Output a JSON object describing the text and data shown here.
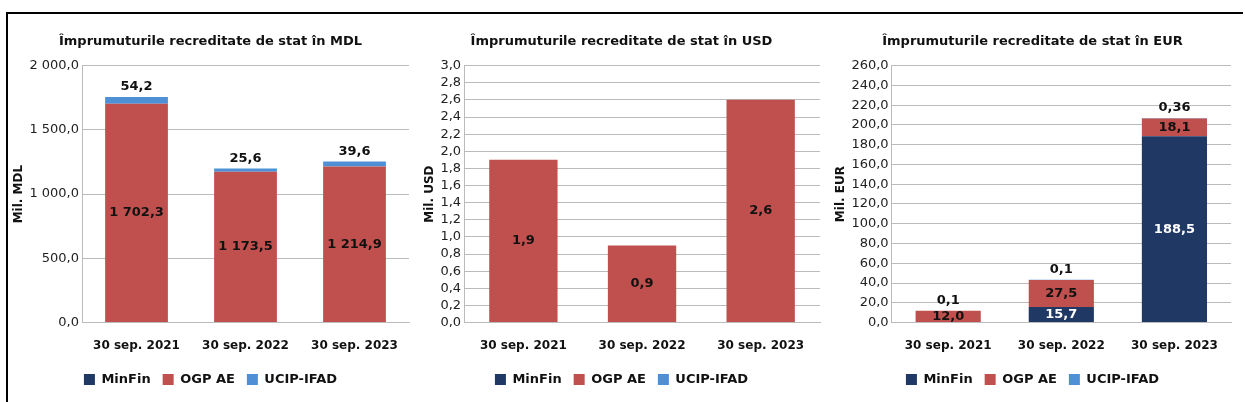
{
  "chart_data": [
    {
      "type": "bar",
      "title": "Împrumuturile recreditate de stat în MDL",
      "ylabel": "Mil. MDL",
      "categories": [
        "30 sep. 2021",
        "30 sep. 2022",
        "30 sep. 2023"
      ],
      "stacked": true,
      "ylim": [
        0,
        2000
      ],
      "yticks": [
        {
          "value": 0,
          "label": "0,0"
        },
        {
          "value": 500,
          "label": "500,0"
        },
        {
          "value": 1000,
          "label": "1 000,0"
        },
        {
          "value": 1500,
          "label": "1 500,0"
        },
        {
          "value": 2000,
          "label": "2 000,0"
        }
      ],
      "grid": "y",
      "legend": "bottom",
      "series": [
        {
          "name": "MinFin",
          "color": "#1f3864",
          "values": [
            null,
            null,
            null
          ]
        },
        {
          "name": "OGP AE",
          "color": "#c0504d",
          "values": [
            1702.3,
            1173.5,
            1214.9
          ],
          "value_labels": [
            "1 702,3",
            "1 173,5",
            "1 214,9"
          ]
        },
        {
          "name": "UCIP-IFAD",
          "color": "#4f8fd6",
          "values": [
            54.2,
            25.6,
            39.6
          ],
          "value_labels": [
            "54,2",
            "25,6",
            "39,6"
          ]
        }
      ]
    },
    {
      "type": "bar",
      "title": "Împrumuturile recreditate de stat în USD",
      "ylabel": "Mil. USD",
      "categories": [
        "30 sep. 2021",
        "30 sep. 2022",
        "30 sep. 2023"
      ],
      "stacked": true,
      "ylim": [
        0,
        3
      ],
      "yticks": [
        {
          "value": 0,
          "label": "0,0"
        },
        {
          "value": 0.2,
          "label": "0,2"
        },
        {
          "value": 0.4,
          "label": "0,4"
        },
        {
          "value": 0.6,
          "label": "0,6"
        },
        {
          "value": 0.8,
          "label": "0,8"
        },
        {
          "value": 1,
          "label": "1,0"
        },
        {
          "value": 1.2,
          "label": "1,2"
        },
        {
          "value": 1.4,
          "label": "1,4"
        },
        {
          "value": 1.6,
          "label": "1,6"
        },
        {
          "value": 1.8,
          "label": "1,8"
        },
        {
          "value": 2,
          "label": "2,0"
        },
        {
          "value": 2.2,
          "label": "2,2"
        },
        {
          "value": 2.4,
          "label": "2,4"
        },
        {
          "value": 2.6,
          "label": "2,6"
        },
        {
          "value": 2.8,
          "label": "2,8"
        },
        {
          "value": 3,
          "label": "3,0"
        }
      ],
      "grid": "y",
      "legend": "bottom",
      "series": [
        {
          "name": "MinFin",
          "color": "#1f3864",
          "values": [
            null,
            null,
            null
          ]
        },
        {
          "name": "OGP AE",
          "color": "#c0504d",
          "values": [
            1.9,
            0.9,
            2.6
          ],
          "value_labels": [
            "1,9",
            "0,9",
            "2,6"
          ]
        },
        {
          "name": "UCIP-IFAD",
          "color": "#4f8fd6",
          "values": [
            null,
            null,
            null
          ]
        }
      ]
    },
    {
      "type": "bar",
      "title": "Împrumuturile recreditate de stat în EUR",
      "ylabel": "Mil. EUR",
      "categories": [
        "30 sep. 2021",
        "30 sep. 2022",
        "30 sep. 2023"
      ],
      "stacked": true,
      "ylim": [
        0,
        260
      ],
      "yticks": [
        {
          "value": 0,
          "label": "0,0"
        },
        {
          "value": 20,
          "label": "20,0"
        },
        {
          "value": 40,
          "label": "40,0"
        },
        {
          "value": 60,
          "label": "60,0"
        },
        {
          "value": 80,
          "label": "80,0"
        },
        {
          "value": 100,
          "label": "100,0"
        },
        {
          "value": 120,
          "label": "120,0"
        },
        {
          "value": 140,
          "label": "140,0"
        },
        {
          "value": 160,
          "label": "160,0"
        },
        {
          "value": 180,
          "label": "180,0"
        },
        {
          "value": 200,
          "label": "200,0"
        },
        {
          "value": 220,
          "label": "220,0"
        },
        {
          "value": 240,
          "label": "240,0"
        },
        {
          "value": 260,
          "label": "260,0"
        }
      ],
      "grid": "y",
      "legend": "bottom",
      "series": [
        {
          "name": "MinFin",
          "color": "#1f3864",
          "values": [
            null,
            15.7,
            188.5
          ],
          "value_labels": [
            null,
            "15,7",
            "188,5"
          ]
        },
        {
          "name": "OGP AE",
          "color": "#c0504d",
          "values": [
            12.0,
            27.5,
            18.1
          ],
          "value_labels": [
            "12,0",
            "27,5",
            "18,1"
          ]
        },
        {
          "name": "UCIP-IFAD",
          "color": "#4f8fd6",
          "values": [
            0.1,
            0.1,
            0.36
          ],
          "value_labels": [
            "0,1",
            "0,1",
            "0,36"
          ]
        }
      ]
    }
  ]
}
